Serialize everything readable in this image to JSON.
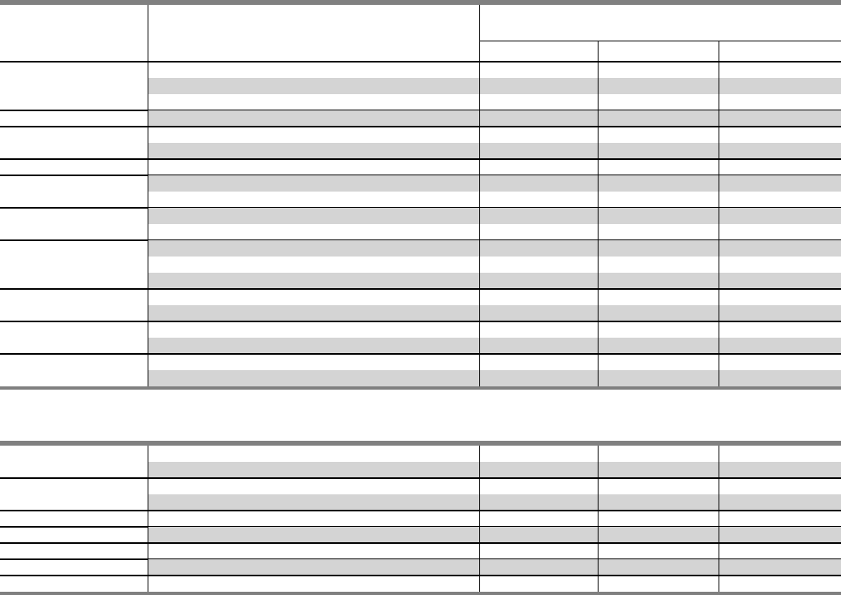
{
  "colors": {
    "rule": "#808080",
    "stripe": "#d4d4d4",
    "grid": "#000000",
    "background": "#ffffff"
  },
  "tables": [
    {
      "header": {
        "columns": [
          "",
          "",
          "",
          "",
          ""
        ]
      },
      "row_groups": [
        {
          "rows": [
            "white",
            "gray",
            "white"
          ]
        },
        {
          "rows": [
            "gray"
          ]
        },
        {
          "rows": [
            "white",
            "gray"
          ]
        },
        {
          "rows": [
            "white"
          ]
        },
        {
          "rows": [
            "gray",
            "white"
          ]
        },
        {
          "rows": [
            "gray",
            "white"
          ]
        },
        {
          "rows": [
            "gray",
            "white",
            "gray"
          ]
        },
        {
          "rows": [
            "white",
            "gray"
          ]
        },
        {
          "rows": [
            "white",
            "gray"
          ]
        },
        {
          "rows": [
            "white",
            "gray"
          ]
        }
      ]
    },
    {
      "row_groups": [
        {
          "rows": [
            "white",
            "gray"
          ]
        },
        {
          "rows": [
            "white",
            "gray"
          ]
        },
        {
          "rows": [
            "white"
          ]
        },
        {
          "rows": [
            "gray"
          ]
        },
        {
          "rows": [
            "white"
          ]
        },
        {
          "rows": [
            "gray"
          ]
        },
        {
          "rows": [
            "white"
          ]
        }
      ]
    }
  ]
}
